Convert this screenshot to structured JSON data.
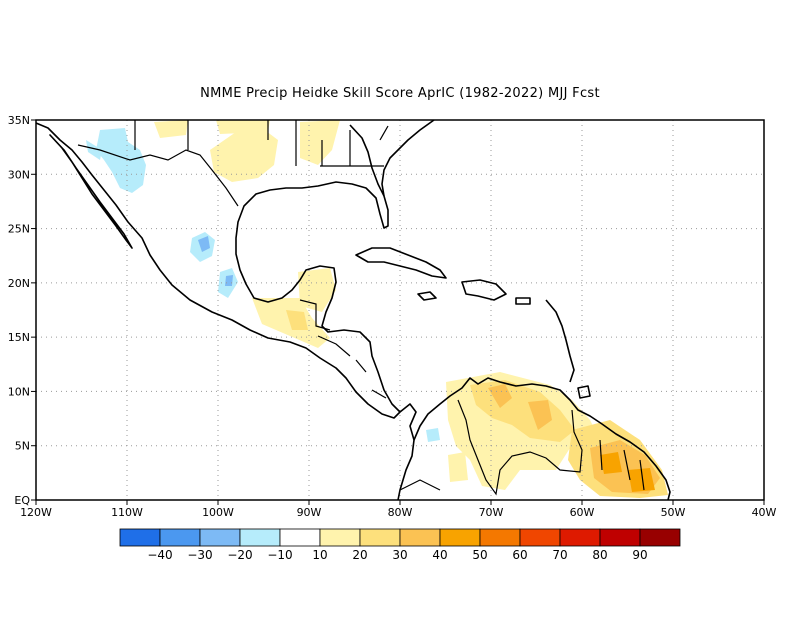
{
  "title": "NMME Precip Heidke Skill Score AprIC (1982-2022) MJJ Fcst",
  "map": {
    "lon_range": [
      -120,
      -40
    ],
    "lat_range": [
      0,
      35
    ],
    "lon_ticks": [
      "120W",
      "110W",
      "100W",
      "90W",
      "80W",
      "70W",
      "60W",
      "50W",
      "40W"
    ],
    "lat_ticks": [
      "EQ",
      "5N",
      "10N",
      "15N",
      "20N",
      "25N",
      "30N",
      "35N"
    ],
    "grid": "dotted"
  },
  "colorbar": {
    "labels": [
      "-40",
      "-30",
      "-20",
      "-10",
      "10",
      "20",
      "30",
      "40",
      "50",
      "60",
      "70",
      "80",
      "90"
    ],
    "colors": [
      "#1f6fe8",
      "#4b98f0",
      "#7dbaf5",
      "#b6ecfb",
      "#ffffff",
      "#fff3ad",
      "#fde07c",
      "#fbc253",
      "#f8a300",
      "#f47800",
      "#f04600",
      "#de1a00",
      "#bf0000",
      "#980000"
    ]
  }
}
